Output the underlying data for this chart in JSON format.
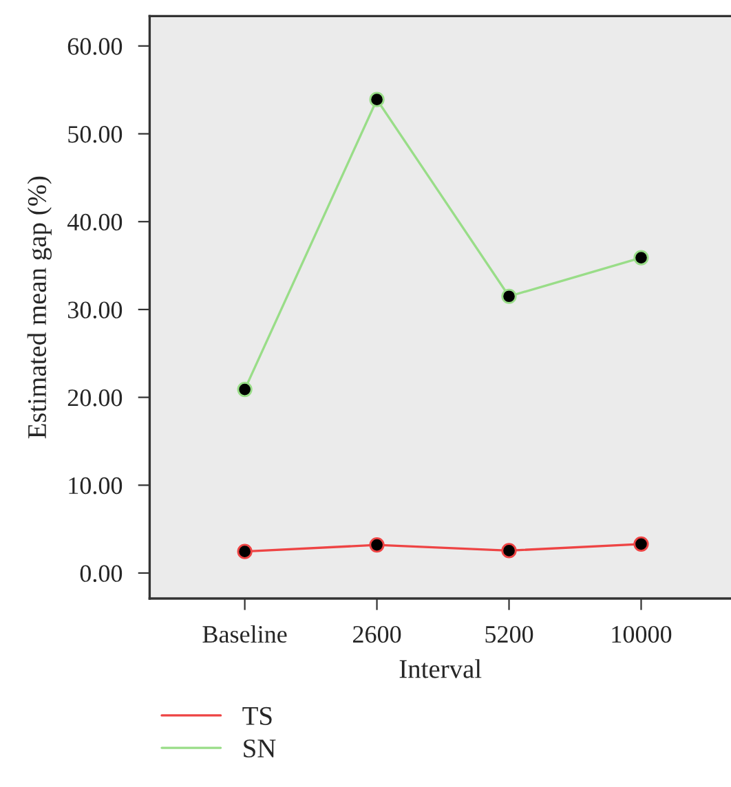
{
  "chart_data": {
    "type": "line",
    "xlabel": "Interval",
    "ylabel": "Estimated mean gap (%)",
    "categories": [
      "Baseline",
      "2600",
      "5200",
      "10000"
    ],
    "series": [
      {
        "name": "TS",
        "color": "#ee4444",
        "values": [
          2.45,
          3.2,
          2.55,
          3.3
        ]
      },
      {
        "name": "SN",
        "color": "#99dd88",
        "values": [
          20.9,
          53.9,
          31.5,
          35.9
        ]
      }
    ],
    "ylim": [
      -2.9,
      63.4
    ],
    "yticks": [
      {
        "value": 0,
        "label": "0.00"
      },
      {
        "value": 10,
        "label": "10.00"
      },
      {
        "value": 20,
        "label": "20.00"
      },
      {
        "value": 30,
        "label": "30.00"
      },
      {
        "value": 40,
        "label": "40.00"
      },
      {
        "value": 50,
        "label": "50.00"
      },
      {
        "value": 60,
        "label": "60.00"
      }
    ],
    "marker": "circle",
    "legend": "bottom left",
    "grid": false
  }
}
